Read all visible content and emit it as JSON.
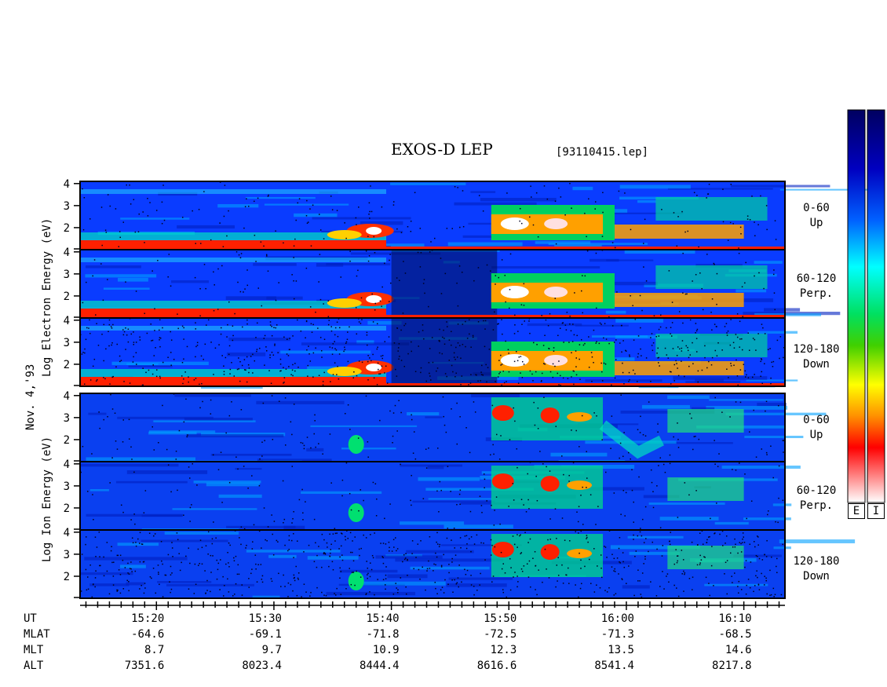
{
  "header": {
    "title": "EXOS-D LEP",
    "file": "[93110415.lep]"
  },
  "date_label": "Nov. 4,'93",
  "electron": {
    "ylabel": "Log   Electron   Energy (eV)",
    "panels": [
      {
        "line1": "0-60",
        "line2": "Up"
      },
      {
        "line1": "60-120",
        "line2": "Perp."
      },
      {
        "line1": "120-180",
        "line2": "Down"
      }
    ]
  },
  "ion": {
    "ylabel": "Log   Ion   Energy (eV)",
    "panels": [
      {
        "line1": "0-60",
        "line2": "Up"
      },
      {
        "line1": "60-120",
        "line2": "Perp."
      },
      {
        "line1": "120-180",
        "line2": "Down"
      }
    ]
  },
  "colorbar": {
    "labels": [
      "E",
      "I"
    ]
  },
  "axis_rows": {
    "labels": [
      "UT",
      "MLAT",
      "MLT",
      "ALT"
    ],
    "ticks": [
      {
        "UT": "15:20",
        "MLAT": "-64.6",
        "MLT": "8.7",
        "ALT": "7351.6"
      },
      {
        "UT": "15:30",
        "MLAT": "-69.1",
        "MLT": "9.7",
        "ALT": "8023.4"
      },
      {
        "UT": "15:40",
        "MLAT": "-71.8",
        "MLT": "10.9",
        "ALT": "8444.4"
      },
      {
        "UT": "15:50",
        "MLAT": "-72.5",
        "MLT": "12.3",
        "ALT": "8616.6"
      },
      {
        "UT": "16:00",
        "MLAT": "-71.3",
        "MLT": "13.5",
        "ALT": "8541.4"
      },
      {
        "UT": "16:10",
        "MLAT": "-68.5",
        "MLT": "14.6",
        "ALT": "8217.8"
      }
    ]
  },
  "chart_data": {
    "type": "heatmap",
    "title": "EXOS-D LEP",
    "x_axis": "UT",
    "xlim": [
      "15:13.5",
      "16:13.5"
    ],
    "x_ticks": [
      "15:20",
      "15:30",
      "15:40",
      "15:50",
      "16:00",
      "16:10"
    ],
    "y_axis": "Log Energy (eV)",
    "ylim": [
      1,
      4.1
    ],
    "y_ticks": [
      "2",
      "3",
      "4"
    ],
    "panels": [
      {
        "species": "Electron",
        "pitch": "0-60",
        "direction": "Up"
      },
      {
        "species": "Electron",
        "pitch": "60-120",
        "direction": "Perp."
      },
      {
        "species": "Electron",
        "pitch": "120-180",
        "direction": "Down"
      },
      {
        "species": "Ion",
        "pitch": "0-60",
        "direction": "Up"
      },
      {
        "species": "Ion",
        "pitch": "60-120",
        "direction": "Perp."
      },
      {
        "species": "Ion",
        "pitch": "120-180",
        "direction": "Down"
      }
    ],
    "colorscale": [
      "#ffffff",
      "#ff0000",
      "#ffb000",
      "#ffff00",
      "#00d000",
      "#00ffff",
      "#0050ff",
      "#000080"
    ]
  }
}
